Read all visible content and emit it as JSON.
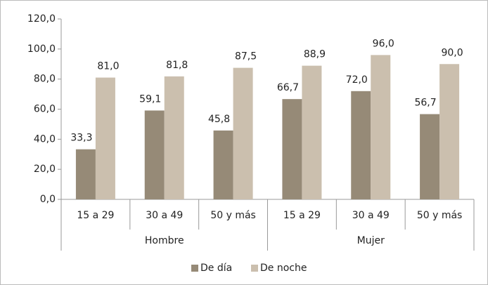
{
  "chart_data": {
    "type": "bar",
    "groups": [
      {
        "name": "Hombre",
        "categories": [
          "15 a 29",
          "30 a 49",
          "50  y más"
        ]
      },
      {
        "name": "Mujer",
        "categories": [
          "15 a 29",
          "30 a 49",
          "50  y más"
        ]
      }
    ],
    "series": [
      {
        "name": "De día",
        "color": "#968a77",
        "values": [
          33.3,
          59.1,
          45.8,
          66.7,
          72.0,
          56.7
        ],
        "value_labels": [
          "33,3",
          "59,1",
          "45,8",
          "66,7",
          "72,0",
          "56,7"
        ]
      },
      {
        "name": "De noche",
        "color": "#cbbfae",
        "values": [
          81.0,
          81.8,
          87.5,
          88.9,
          96.0,
          90.0
        ],
        "value_labels": [
          "81,0",
          "81,8",
          "87,5",
          "88,9",
          "96,0",
          "90,0"
        ]
      }
    ],
    "ylim": [
      0,
      120
    ],
    "yticks": [
      {
        "value": 0,
        "label": "0,0"
      },
      {
        "value": 20,
        "label": "20,0"
      },
      {
        "value": 40,
        "label": "40,0"
      },
      {
        "value": 60,
        "label": "60,0"
      },
      {
        "value": 80,
        "label": "80,0"
      },
      {
        "value": 100,
        "label": "100,0"
      },
      {
        "value": 120,
        "label": "120,0"
      }
    ],
    "grid": false,
    "legend": "bottom"
  }
}
